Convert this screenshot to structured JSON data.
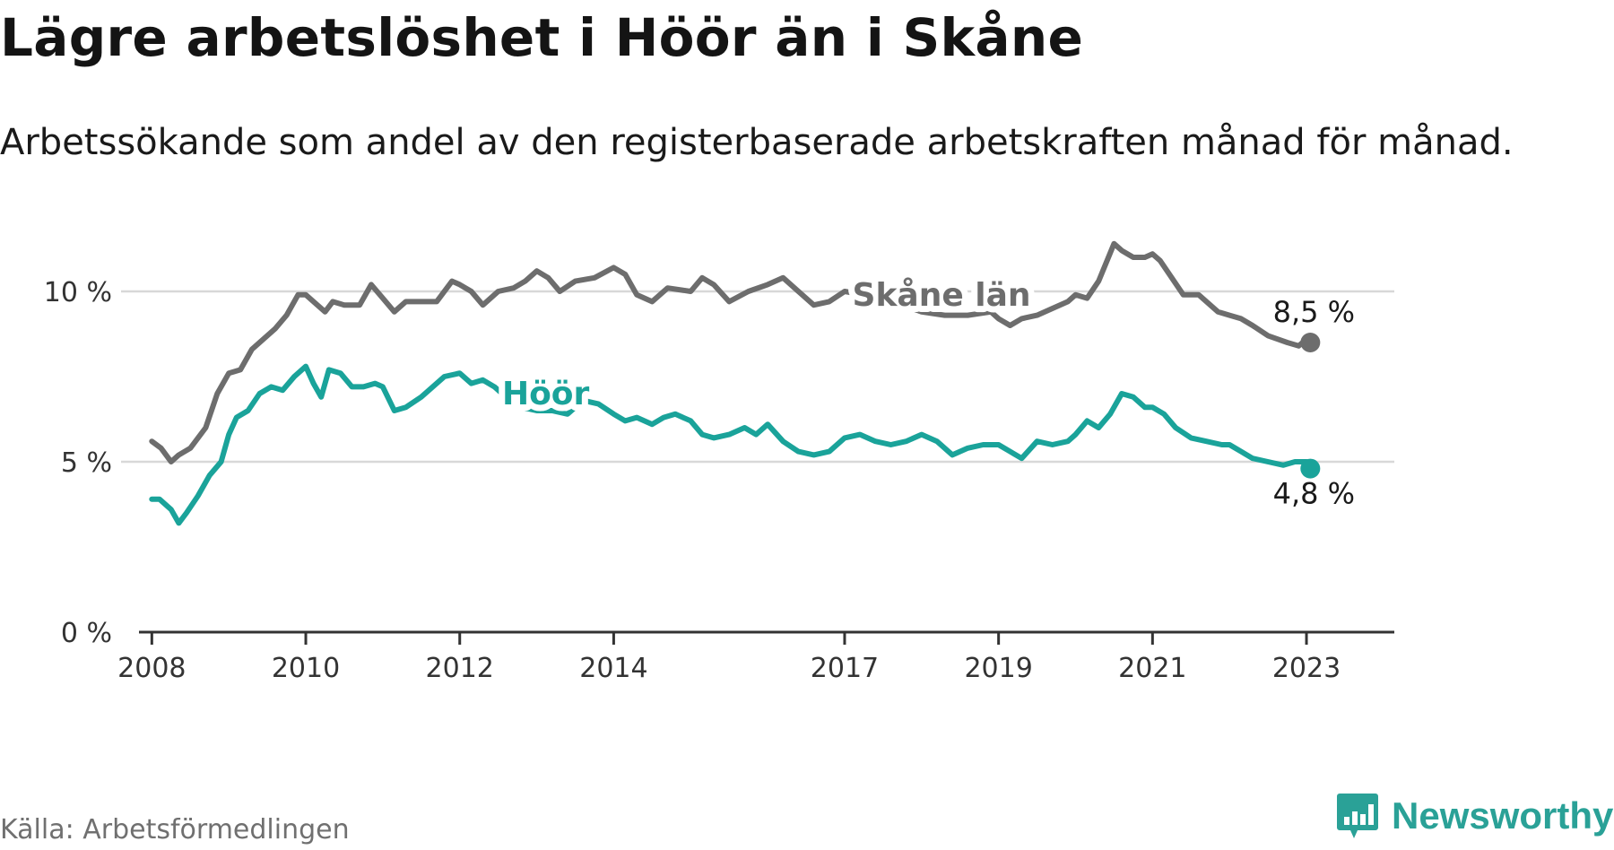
{
  "header": {
    "title": "Lägre arbetslöshet i Höör än i Skåne",
    "subtitle": "Arbetssökande som andel av den registerbaserade arbetskraften månad för månad."
  },
  "footer": {
    "source": "Källa: Arbetsförmedlingen",
    "brand": "Newsworthy"
  },
  "chart_data": {
    "type": "line",
    "title": "Lägre arbetslöshet i Höör än i Skåne",
    "xlabel": "",
    "ylabel": "",
    "ylim": [
      0,
      11.5
    ],
    "xlim": [
      2007.6,
      2023.85
    ],
    "yticks": [
      0,
      5,
      10
    ],
    "ytick_labels": [
      "0 %",
      "5 %",
      "10 %"
    ],
    "xticks": [
      2008,
      2010,
      2012,
      2014,
      2017,
      2019,
      2021,
      2023
    ],
    "xtick_labels": [
      "2008",
      "2010",
      "2012",
      "2014",
      "2017",
      "2019",
      "2021",
      "2023"
    ],
    "grid": true,
    "series": [
      {
        "name": "Skåne län",
        "color": "#6d6d6d",
        "end_label": "8,5 %",
        "x": [
          2008.0,
          2008.12,
          2008.25,
          2008.35,
          2008.5,
          2008.7,
          2008.85,
          2009.0,
          2009.15,
          2009.3,
          2009.5,
          2009.6,
          2009.75,
          2009.9,
          2010.0,
          2010.1,
          2010.25,
          2010.35,
          2010.5,
          2010.7,
          2010.85,
          2011.0,
          2011.15,
          2011.3,
          2011.5,
          2011.7,
          2011.9,
          2012.0,
          2012.15,
          2012.3,
          2012.5,
          2012.7,
          2012.85,
          2013.0,
          2013.15,
          2013.3,
          2013.5,
          2013.75,
          2014.0,
          2014.15,
          2014.3,
          2014.5,
          2014.7,
          2015.0,
          2015.15,
          2015.3,
          2015.5,
          2015.75,
          2016.0,
          2016.2,
          2016.4,
          2016.6,
          2016.8,
          2017.0,
          2017.5,
          2018.0,
          2018.3,
          2018.6,
          2018.9,
          2019.0,
          2019.15,
          2019.3,
          2019.5,
          2019.7,
          2019.9,
          2020.0,
          2020.15,
          2020.3,
          2020.5,
          2020.6,
          2020.75,
          2020.9,
          2021.0,
          2021.1,
          2021.25,
          2021.4,
          2021.6,
          2021.85,
          2022.0,
          2022.15,
          2022.3,
          2022.5,
          2022.75,
          2022.9,
          2023.0,
          2023.05
        ],
        "values": [
          5.6,
          5.4,
          5.0,
          5.2,
          5.4,
          6.0,
          7.0,
          7.6,
          7.7,
          8.3,
          8.7,
          8.9,
          9.3,
          9.9,
          9.9,
          9.7,
          9.4,
          9.7,
          9.6,
          9.6,
          10.2,
          9.8,
          9.4,
          9.7,
          9.7,
          9.7,
          10.3,
          10.2,
          10.0,
          9.6,
          10.0,
          10.1,
          10.3,
          10.6,
          10.4,
          10.0,
          10.3,
          10.4,
          10.7,
          10.5,
          9.9,
          9.7,
          10.1,
          10.0,
          10.4,
          10.2,
          9.7,
          10.0,
          10.2,
          10.4,
          10.0,
          9.6,
          9.7,
          10.0,
          9.8,
          9.4,
          9.3,
          9.3,
          9.4,
          9.2,
          9.0,
          9.2,
          9.3,
          9.5,
          9.7,
          9.9,
          9.8,
          10.3,
          11.4,
          11.2,
          11.0,
          11.0,
          11.1,
          10.9,
          10.4,
          9.9,
          9.9,
          9.4,
          9.3,
          9.2,
          9.0,
          8.7,
          8.5,
          8.4,
          8.6,
          8.5
        ]
      },
      {
        "name": "Höör",
        "color": "#1aa39a",
        "end_label": "4,8 %",
        "x": [
          2008.0,
          2008.1,
          2008.25,
          2008.35,
          2008.45,
          2008.6,
          2008.75,
          2008.9,
          2009.0,
          2009.1,
          2009.25,
          2009.4,
          2009.55,
          2009.7,
          2009.85,
          2010.0,
          2010.1,
          2010.2,
          2010.3,
          2010.45,
          2010.6,
          2010.75,
          2010.9,
          2011.0,
          2011.15,
          2011.3,
          2011.5,
          2011.65,
          2011.8,
          2012.0,
          2012.15,
          2012.3,
          2012.45,
          2012.6,
          2012.8,
          2013.0,
          2013.2,
          2013.4,
          2013.6,
          2013.8,
          2014.0,
          2014.15,
          2014.3,
          2014.5,
          2014.65,
          2014.8,
          2015.0,
          2015.15,
          2015.3,
          2015.5,
          2015.7,
          2015.85,
          2016.0,
          2016.2,
          2016.4,
          2016.6,
          2016.8,
          2017.0,
          2017.2,
          2017.4,
          2017.6,
          2017.8,
          2018.0,
          2018.2,
          2018.4,
          2018.6,
          2018.8,
          2019.0,
          2019.15,
          2019.3,
          2019.5,
          2019.7,
          2019.9,
          2020.0,
          2020.15,
          2020.3,
          2020.45,
          2020.6,
          2020.75,
          2020.9,
          2021.0,
          2021.15,
          2021.3,
          2021.5,
          2021.7,
          2021.9,
          2022.0,
          2022.15,
          2022.3,
          2022.5,
          2022.7,
          2022.85,
          2023.0,
          2023.05
        ],
        "values": [
          3.9,
          3.9,
          3.6,
          3.2,
          3.5,
          4.0,
          4.6,
          5.0,
          5.8,
          6.3,
          6.5,
          7.0,
          7.2,
          7.1,
          7.5,
          7.8,
          7.3,
          6.9,
          7.7,
          7.6,
          7.2,
          7.2,
          7.3,
          7.2,
          6.5,
          6.6,
          6.9,
          7.2,
          7.5,
          7.6,
          7.3,
          7.4,
          7.2,
          6.9,
          6.6,
          6.5,
          6.5,
          6.4,
          6.8,
          6.7,
          6.4,
          6.2,
          6.3,
          6.1,
          6.3,
          6.4,
          6.2,
          5.8,
          5.7,
          5.8,
          6.0,
          5.8,
          6.1,
          5.6,
          5.3,
          5.2,
          5.3,
          5.7,
          5.8,
          5.6,
          5.5,
          5.6,
          5.8,
          5.6,
          5.2,
          5.4,
          5.5,
          5.5,
          5.3,
          5.1,
          5.6,
          5.5,
          5.6,
          5.8,
          6.2,
          6.0,
          6.4,
          7.0,
          6.9,
          6.6,
          6.6,
          6.4,
          6.0,
          5.7,
          5.6,
          5.5,
          5.5,
          5.3,
          5.1,
          5.0,
          4.9,
          5.0,
          5.0,
          4.8
        ]
      }
    ],
    "annotations": [
      {
        "series": "Skåne län",
        "text": "Skåne län",
        "at_x": 2017.1,
        "at_y": 9.9
      },
      {
        "series": "Höör",
        "text": "Höör",
        "at_x": 2012.55,
        "at_y": 7.0
      }
    ]
  }
}
